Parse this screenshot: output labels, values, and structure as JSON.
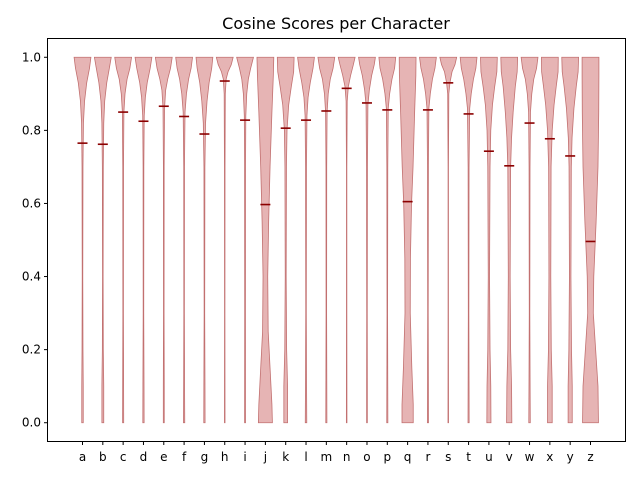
{
  "chart_data": {
    "type": "violin",
    "title": "Cosine Scores per Character",
    "xlabel": "",
    "ylabel": "",
    "ylim": [
      -0.05,
      1.05
    ],
    "yticks": [
      0.0,
      0.2,
      0.4,
      0.6,
      0.8,
      1.0
    ],
    "ytick_labels": [
      "0.0",
      "0.2",
      "0.4",
      "0.6",
      "0.8",
      "1.0"
    ],
    "grid": false,
    "fill_color": "#d98c8c",
    "median_color": "#8b0000",
    "categories": [
      "a",
      "b",
      "c",
      "d",
      "e",
      "f",
      "g",
      "h",
      "i",
      "j",
      "k",
      "l",
      "m",
      "n",
      "o",
      "p",
      "q",
      "r",
      "s",
      "t",
      "u",
      "v",
      "w",
      "x",
      "y",
      "z"
    ],
    "medians": [
      0.765,
      0.762,
      0.85,
      0.825,
      0.866,
      0.838,
      0.79,
      0.935,
      0.828,
      0.597,
      0.806,
      0.828,
      0.853,
      0.915,
      0.875,
      0.856,
      0.605,
      0.856,
      0.93,
      0.845,
      0.743,
      0.703,
      0.82,
      0.777,
      0.73,
      0.496
    ],
    "range": [
      0.0,
      1.0
    ],
    "density_profiles": [
      [
        [
          1.0,
          0.9
        ],
        [
          0.97,
          0.75
        ],
        [
          0.93,
          0.45
        ],
        [
          0.88,
          0.22
        ],
        [
          0.82,
          0.1
        ],
        [
          0.7,
          0.05
        ],
        [
          0.4,
          0.03
        ],
        [
          0.2,
          0.05
        ],
        [
          0.1,
          0.08
        ],
        [
          0.0,
          0.08
        ]
      ],
      [
        [
          1.0,
          0.9
        ],
        [
          0.97,
          0.7
        ],
        [
          0.93,
          0.42
        ],
        [
          0.88,
          0.2
        ],
        [
          0.82,
          0.1
        ],
        [
          0.7,
          0.05
        ],
        [
          0.4,
          0.03
        ],
        [
          0.2,
          0.05
        ],
        [
          0.1,
          0.1
        ],
        [
          0.0,
          0.1
        ]
      ],
      [
        [
          1.0,
          0.9
        ],
        [
          0.97,
          0.72
        ],
        [
          0.94,
          0.42
        ],
        [
          0.9,
          0.2
        ],
        [
          0.85,
          0.08
        ],
        [
          0.7,
          0.04
        ],
        [
          0.3,
          0.03
        ],
        [
          0.1,
          0.05
        ],
        [
          0.0,
          0.06
        ]
      ],
      [
        [
          1.0,
          0.9
        ],
        [
          0.97,
          0.72
        ],
        [
          0.93,
          0.4
        ],
        [
          0.89,
          0.2
        ],
        [
          0.84,
          0.08
        ],
        [
          0.7,
          0.04
        ],
        [
          0.3,
          0.03
        ],
        [
          0.1,
          0.06
        ],
        [
          0.0,
          0.07
        ]
      ],
      [
        [
          1.0,
          0.9
        ],
        [
          0.97,
          0.72
        ],
        [
          0.94,
          0.42
        ],
        [
          0.91,
          0.2
        ],
        [
          0.86,
          0.08
        ],
        [
          0.7,
          0.04
        ],
        [
          0.3,
          0.03
        ],
        [
          0.1,
          0.05
        ],
        [
          0.0,
          0.05
        ]
      ],
      [
        [
          1.0,
          0.9
        ],
        [
          0.97,
          0.75
        ],
        [
          0.94,
          0.48
        ],
        [
          0.9,
          0.25
        ],
        [
          0.85,
          0.1
        ],
        [
          0.7,
          0.04
        ],
        [
          0.3,
          0.03
        ],
        [
          0.1,
          0.05
        ],
        [
          0.0,
          0.07
        ]
      ],
      [
        [
          1.0,
          0.9
        ],
        [
          0.97,
          0.78
        ],
        [
          0.93,
          0.5
        ],
        [
          0.88,
          0.28
        ],
        [
          0.82,
          0.12
        ],
        [
          0.7,
          0.05
        ],
        [
          0.3,
          0.03
        ],
        [
          0.1,
          0.06
        ],
        [
          0.0,
          0.07
        ]
      ],
      [
        [
          1.0,
          0.9
        ],
        [
          0.98,
          0.7
        ],
        [
          0.96,
          0.35
        ],
        [
          0.94,
          0.15
        ],
        [
          0.9,
          0.06
        ],
        [
          0.7,
          0.03
        ],
        [
          0.3,
          0.02
        ],
        [
          0.0,
          0.03
        ]
      ],
      [
        [
          1.0,
          0.9
        ],
        [
          0.97,
          0.6
        ],
        [
          0.94,
          0.35
        ],
        [
          0.9,
          0.18
        ],
        [
          0.84,
          0.08
        ],
        [
          0.7,
          0.05
        ],
        [
          0.3,
          0.04
        ],
        [
          0.0,
          0.05
        ]
      ],
      [
        [
          1.0,
          0.9
        ],
        [
          0.95,
          0.85
        ],
        [
          0.85,
          0.7
        ],
        [
          0.7,
          0.5
        ],
        [
          0.55,
          0.35
        ],
        [
          0.4,
          0.25
        ],
        [
          0.25,
          0.3
        ],
        [
          0.15,
          0.5
        ],
        [
          0.05,
          0.7
        ],
        [
          0.0,
          0.75
        ]
      ],
      [
        [
          1.0,
          0.9
        ],
        [
          0.96,
          0.85
        ],
        [
          0.92,
          0.6
        ],
        [
          0.87,
          0.32
        ],
        [
          0.8,
          0.14
        ],
        [
          0.7,
          0.08
        ],
        [
          0.4,
          0.05
        ],
        [
          0.2,
          0.1
        ],
        [
          0.1,
          0.2
        ],
        [
          0.0,
          0.2
        ]
      ],
      [
        [
          1.0,
          0.9
        ],
        [
          0.97,
          0.75
        ],
        [
          0.93,
          0.45
        ],
        [
          0.89,
          0.22
        ],
        [
          0.84,
          0.1
        ],
        [
          0.7,
          0.05
        ],
        [
          0.3,
          0.03
        ],
        [
          0.1,
          0.06
        ],
        [
          0.0,
          0.08
        ]
      ],
      [
        [
          1.0,
          0.9
        ],
        [
          0.97,
          0.72
        ],
        [
          0.94,
          0.42
        ],
        [
          0.9,
          0.2
        ],
        [
          0.85,
          0.08
        ],
        [
          0.7,
          0.04
        ],
        [
          0.3,
          0.03
        ],
        [
          0.1,
          0.05
        ],
        [
          0.0,
          0.06
        ]
      ],
      [
        [
          1.0,
          0.9
        ],
        [
          0.98,
          0.72
        ],
        [
          0.95,
          0.42
        ],
        [
          0.92,
          0.18
        ],
        [
          0.88,
          0.06
        ],
        [
          0.7,
          0.02
        ],
        [
          0.3,
          0.02
        ],
        [
          0.0,
          0.03
        ]
      ],
      [
        [
          1.0,
          0.9
        ],
        [
          0.98,
          0.78
        ],
        [
          0.95,
          0.5
        ],
        [
          0.91,
          0.25
        ],
        [
          0.87,
          0.1
        ],
        [
          0.7,
          0.05
        ],
        [
          0.3,
          0.03
        ],
        [
          0.1,
          0.04
        ],
        [
          0.0,
          0.04
        ]
      ],
      [
        [
          1.0,
          0.9
        ],
        [
          0.97,
          0.78
        ],
        [
          0.94,
          0.5
        ],
        [
          0.9,
          0.25
        ],
        [
          0.86,
          0.1
        ],
        [
          0.7,
          0.05
        ],
        [
          0.3,
          0.03
        ],
        [
          0.1,
          0.05
        ],
        [
          0.0,
          0.06
        ]
      ],
      [
        [
          1.0,
          0.9
        ],
        [
          0.95,
          0.88
        ],
        [
          0.85,
          0.75
        ],
        [
          0.7,
          0.58
        ],
        [
          0.6,
          0.42
        ],
        [
          0.45,
          0.3
        ],
        [
          0.3,
          0.28
        ],
        [
          0.15,
          0.45
        ],
        [
          0.05,
          0.6
        ],
        [
          0.0,
          0.6
        ]
      ],
      [
        [
          1.0,
          0.9
        ],
        [
          0.97,
          0.75
        ],
        [
          0.94,
          0.48
        ],
        [
          0.9,
          0.25
        ],
        [
          0.86,
          0.1
        ],
        [
          0.7,
          0.05
        ],
        [
          0.3,
          0.03
        ],
        [
          0.1,
          0.05
        ],
        [
          0.0,
          0.06
        ]
      ],
      [
        [
          1.0,
          0.9
        ],
        [
          0.98,
          0.72
        ],
        [
          0.96,
          0.4
        ],
        [
          0.93,
          0.18
        ],
        [
          0.9,
          0.06
        ],
        [
          0.7,
          0.02
        ],
        [
          0.3,
          0.02
        ],
        [
          0.0,
          0.03
        ]
      ],
      [
        [
          1.0,
          0.9
        ],
        [
          0.97,
          0.78
        ],
        [
          0.94,
          0.52
        ],
        [
          0.9,
          0.28
        ],
        [
          0.86,
          0.12
        ],
        [
          0.7,
          0.05
        ],
        [
          0.3,
          0.03
        ],
        [
          0.1,
          0.05
        ],
        [
          0.0,
          0.06
        ]
      ],
      [
        [
          1.0,
          0.9
        ],
        [
          0.96,
          0.85
        ],
        [
          0.92,
          0.62
        ],
        [
          0.87,
          0.38
        ],
        [
          0.8,
          0.2
        ],
        [
          0.7,
          0.12
        ],
        [
          0.4,
          0.07
        ],
        [
          0.2,
          0.12
        ],
        [
          0.1,
          0.2
        ],
        [
          0.0,
          0.22
        ]
      ],
      [
        [
          1.0,
          0.9
        ],
        [
          0.96,
          0.85
        ],
        [
          0.92,
          0.65
        ],
        [
          0.85,
          0.42
        ],
        [
          0.78,
          0.25
        ],
        [
          0.7,
          0.15
        ],
        [
          0.4,
          0.1
        ],
        [
          0.2,
          0.15
        ],
        [
          0.1,
          0.25
        ],
        [
          0.0,
          0.28
        ]
      ],
      [
        [
          1.0,
          0.9
        ],
        [
          0.97,
          0.75
        ],
        [
          0.94,
          0.45
        ],
        [
          0.9,
          0.24
        ],
        [
          0.85,
          0.1
        ],
        [
          0.7,
          0.05
        ],
        [
          0.3,
          0.03
        ],
        [
          0.1,
          0.06
        ],
        [
          0.0,
          0.08
        ]
      ],
      [
        [
          1.0,
          0.9
        ],
        [
          0.96,
          0.88
        ],
        [
          0.92,
          0.68
        ],
        [
          0.87,
          0.45
        ],
        [
          0.8,
          0.25
        ],
        [
          0.7,
          0.13
        ],
        [
          0.4,
          0.1
        ],
        [
          0.2,
          0.15
        ],
        [
          0.1,
          0.25
        ],
        [
          0.0,
          0.25
        ]
      ],
      [
        [
          1.0,
          0.9
        ],
        [
          0.96,
          0.85
        ],
        [
          0.92,
          0.65
        ],
        [
          0.86,
          0.4
        ],
        [
          0.78,
          0.2
        ],
        [
          0.7,
          0.12
        ],
        [
          0.4,
          0.08
        ],
        [
          0.2,
          0.14
        ],
        [
          0.1,
          0.22
        ],
        [
          0.0,
          0.22
        ]
      ],
      [
        [
          1.0,
          0.9
        ],
        [
          0.95,
          0.9
        ],
        [
          0.85,
          0.88
        ],
        [
          0.7,
          0.8
        ],
        [
          0.55,
          0.6
        ],
        [
          0.4,
          0.35
        ],
        [
          0.3,
          0.3
        ],
        [
          0.2,
          0.55
        ],
        [
          0.1,
          0.8
        ],
        [
          0.0,
          0.85
        ]
      ]
    ]
  }
}
